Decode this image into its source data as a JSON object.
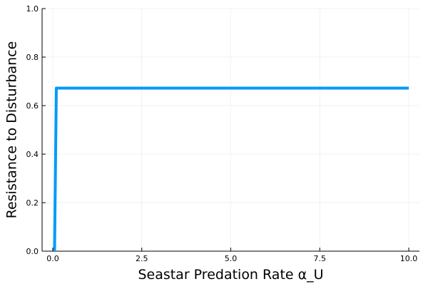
{
  "chart_data": {
    "type": "line",
    "title": "",
    "xlabel": "Seastar Predation Rate α_U",
    "ylabel": "Resistance to Disturbance",
    "xlim": [
      -0.3,
      10.3
    ],
    "ylim": [
      0,
      1
    ],
    "xticks": [
      0.0,
      2.5,
      5.0,
      7.5,
      10.0
    ],
    "xtick_labels": [
      "0.0",
      "2.5",
      "5.0",
      "7.5",
      "10.0"
    ],
    "yticks": [
      0.0,
      0.2,
      0.4,
      0.6,
      0.8,
      1.0
    ],
    "ytick_labels": [
      "0.0",
      "0.2",
      "0.4",
      "0.6",
      "0.8",
      "1.0"
    ],
    "grid": true,
    "legend": "none",
    "series": [
      {
        "color": "#009AFA",
        "x": [
          0.05,
          0.1,
          0.5,
          1.0,
          2.0,
          3.0,
          4.0,
          5.0,
          6.0,
          7.0,
          8.0,
          9.0,
          10.0
        ],
        "y": [
          0.0,
          0.672,
          0.672,
          0.672,
          0.672,
          0.672,
          0.672,
          0.672,
          0.672,
          0.672,
          0.672,
          0.672,
          0.672
        ]
      }
    ]
  }
}
